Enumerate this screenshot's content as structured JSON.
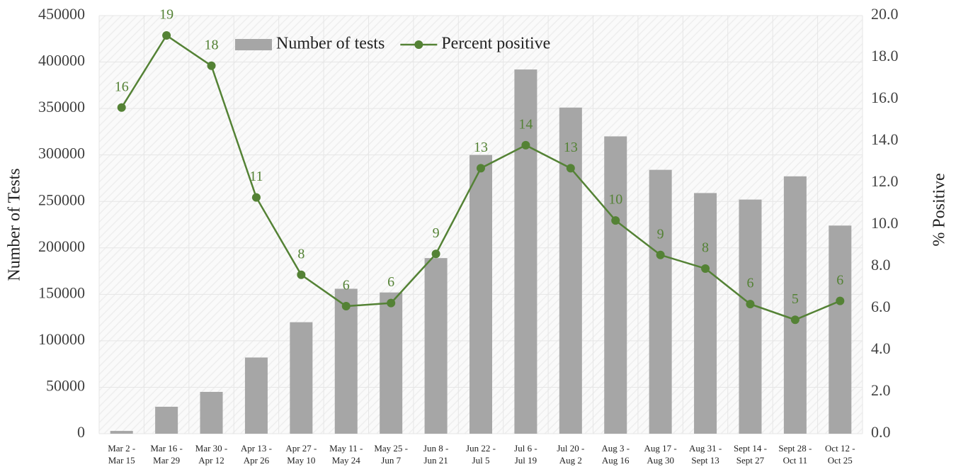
{
  "chart_data": {
    "type": "bar-line",
    "y_label": "Number of Tests",
    "y2_label": "% Positive",
    "categories": [
      "Mar 2 -\nMar 15",
      "Mar 16 -\nMar 29",
      "Mar 30 -\nApr 12",
      "Apr 13 -\nApr 26",
      "Apr 27 -\nMay 10",
      "May 11 -\nMay 24",
      "May 25 -\nJun 7",
      "Jun 8 -\nJun 21",
      "Jun 22 -\nJul 5",
      "Jul 6 -\nJul 19",
      "Jul 20 -\nAug 2",
      "Aug 3 -\nAug 16",
      "Aug 17 -\nAug 30",
      "Aug 31 -\nSept 13",
      "Sept 14 -\nSept 27",
      "Sept 28 -\nOct 11",
      "Oct 12 -\nOct 25"
    ],
    "series": [
      {
        "name": "Number of tests",
        "color": "#a6a6a6",
        "kind": "bar",
        "values": [
          3000,
          29000,
          45000,
          82000,
          120000,
          156000,
          152000,
          189000,
          300000,
          392000,
          351000,
          320000,
          284000,
          259000,
          252000,
          277000,
          224000
        ]
      },
      {
        "name": "Percent positive",
        "color": "#548235",
        "kind": "line",
        "axis": "y2",
        "values": [
          15.6,
          19.05,
          17.6,
          11.3,
          7.6,
          6.1,
          6.25,
          8.6,
          12.7,
          13.8,
          12.7,
          10.2,
          8.55,
          7.9,
          6.2,
          5.45,
          6.35
        ],
        "value_labels": [
          "16",
          "19",
          "18",
          "11",
          "8",
          "6",
          "6",
          "9",
          "13",
          "14",
          "13",
          "10",
          "9",
          "8",
          "6",
          "5",
          "6"
        ]
      }
    ],
    "ylim": [
      0,
      450000
    ],
    "yticks": [
      0,
      50000,
      100000,
      150000,
      200000,
      250000,
      300000,
      350000,
      400000,
      450000
    ],
    "y2lim": [
      0,
      20
    ],
    "y2ticks": [
      {
        "value": 0,
        "label": "0.0"
      },
      {
        "value": 2,
        "label": "2.0"
      },
      {
        "value": 4,
        "label": "4.0"
      },
      {
        "value": 6,
        "label": "6.0"
      },
      {
        "value": 8,
        "label": "8.0"
      },
      {
        "value": 10,
        "label": "10.0"
      },
      {
        "value": 12,
        "label": "12.0"
      },
      {
        "value": 14,
        "label": "14.0"
      },
      {
        "value": 16,
        "label": "16.0"
      },
      {
        "value": 18,
        "label": "18.0"
      },
      {
        "value": 20,
        "label": "20.0"
      }
    ],
    "grid": true
  }
}
